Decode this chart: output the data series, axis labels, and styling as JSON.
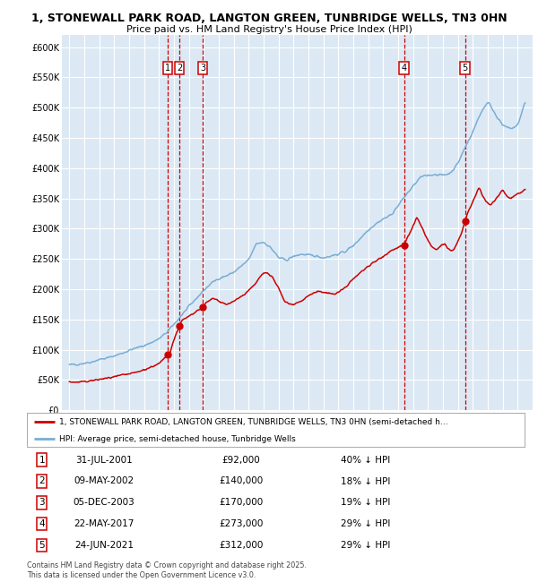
{
  "title_line1": "1, STONEWALL PARK ROAD, LANGTON GREEN, TUNBRIDGE WELLS, TN3 0HN",
  "title_line2": "Price paid vs. HM Land Registry's House Price Index (HPI)",
  "background_color": "#dce9f5",
  "plot_bg_color": "#dce9f5",
  "transactions": [
    {
      "label": "1",
      "date_num": 2001.58,
      "price": 92000
    },
    {
      "label": "2",
      "date_num": 2002.36,
      "price": 140000
    },
    {
      "label": "3",
      "date_num": 2003.92,
      "price": 170000
    },
    {
      "label": "4",
      "date_num": 2017.39,
      "price": 273000
    },
    {
      "label": "5",
      "date_num": 2021.48,
      "price": 312000
    }
  ],
  "legend_label_red": "1, STONEWALL PARK ROAD, LANGTON GREEN, TUNBRIDGE WELLS, TN3 0HN (semi-detached h…",
  "legend_label_blue": "HPI: Average price, semi-detached house, Tunbridge Wells",
  "footer": "Contains HM Land Registry data © Crown copyright and database right 2025.\nThis data is licensed under the Open Government Licence v3.0.",
  "table": [
    {
      "num": "1",
      "date": "31-JUL-2001",
      "price": "£92,000",
      "hpi": "40% ↓ HPI"
    },
    {
      "num": "2",
      "date": "09-MAY-2002",
      "price": "£140,000",
      "hpi": "18% ↓ HPI"
    },
    {
      "num": "3",
      "date": "05-DEC-2003",
      "price": "£170,000",
      "hpi": "19% ↓ HPI"
    },
    {
      "num": "4",
      "date": "22-MAY-2017",
      "price": "£273,000",
      "hpi": "29% ↓ HPI"
    },
    {
      "num": "5",
      "date": "24-JUN-2021",
      "price": "£312,000",
      "hpi": "29% ↓ HPI"
    }
  ],
  "ylim": [
    0,
    620000
  ],
  "yticks": [
    0,
    50000,
    100000,
    150000,
    200000,
    250000,
    300000,
    350000,
    400000,
    450000,
    500000,
    550000,
    600000
  ],
  "ytick_labels": [
    "£0",
    "£50K",
    "£100K",
    "£150K",
    "£200K",
    "£250K",
    "£300K",
    "£350K",
    "£400K",
    "£450K",
    "£500K",
    "£550K",
    "£600K"
  ],
  "xlim_start": 1994.5,
  "xlim_end": 2026.0,
  "red_color": "#cc0000",
  "blue_color": "#7aadd4",
  "hpi_points": [
    [
      1995.0,
      75000
    ],
    [
      1995.5,
      76000
    ],
    [
      1996.0,
      78000
    ],
    [
      1996.5,
      80000
    ],
    [
      1997.0,
      84000
    ],
    [
      1997.5,
      86000
    ],
    [
      1998.0,
      90000
    ],
    [
      1998.5,
      94000
    ],
    [
      1999.0,
      99000
    ],
    [
      1999.5,
      103000
    ],
    [
      2000.0,
      107000
    ],
    [
      2000.5,
      112000
    ],
    [
      2001.0,
      118000
    ],
    [
      2001.5,
      128000
    ],
    [
      2002.0,
      142000
    ],
    [
      2002.5,
      157000
    ],
    [
      2003.0,
      171000
    ],
    [
      2003.5,
      185000
    ],
    [
      2004.0,
      198000
    ],
    [
      2004.5,
      210000
    ],
    [
      2005.0,
      218000
    ],
    [
      2005.5,
      222000
    ],
    [
      2006.0,
      228000
    ],
    [
      2006.5,
      238000
    ],
    [
      2007.0,
      248000
    ],
    [
      2007.5,
      275000
    ],
    [
      2008.0,
      278000
    ],
    [
      2008.5,
      268000
    ],
    [
      2009.0,
      252000
    ],
    [
      2009.5,
      248000
    ],
    [
      2010.0,
      254000
    ],
    [
      2010.5,
      258000
    ],
    [
      2011.0,
      256000
    ],
    [
      2011.5,
      255000
    ],
    [
      2012.0,
      252000
    ],
    [
      2012.5,
      255000
    ],
    [
      2013.0,
      258000
    ],
    [
      2013.5,
      263000
    ],
    [
      2014.0,
      272000
    ],
    [
      2014.5,
      285000
    ],
    [
      2015.0,
      298000
    ],
    [
      2015.5,
      308000
    ],
    [
      2016.0,
      316000
    ],
    [
      2016.5,
      322000
    ],
    [
      2017.0,
      338000
    ],
    [
      2017.5,
      355000
    ],
    [
      2018.0,
      370000
    ],
    [
      2018.5,
      385000
    ],
    [
      2019.0,
      388000
    ],
    [
      2019.5,
      390000
    ],
    [
      2020.0,
      388000
    ],
    [
      2020.5,
      392000
    ],
    [
      2021.0,
      408000
    ],
    [
      2021.5,
      435000
    ],
    [
      2022.0,
      460000
    ],
    [
      2022.5,
      490000
    ],
    [
      2023.0,
      510000
    ],
    [
      2023.5,
      490000
    ],
    [
      2024.0,
      470000
    ],
    [
      2024.5,
      465000
    ],
    [
      2025.0,
      470000
    ],
    [
      2025.5,
      510000
    ]
  ],
  "red_points": [
    [
      1995.0,
      47000
    ],
    [
      1995.5,
      46000
    ],
    [
      1996.0,
      47500
    ],
    [
      1996.5,
      49000
    ],
    [
      1997.0,
      51000
    ],
    [
      1997.5,
      53000
    ],
    [
      1998.0,
      55000
    ],
    [
      1998.5,
      58000
    ],
    [
      1999.0,
      60000
    ],
    [
      1999.5,
      63000
    ],
    [
      2000.0,
      67000
    ],
    [
      2000.5,
      72000
    ],
    [
      2001.0,
      77000
    ],
    [
      2001.58,
      92000
    ],
    [
      2001.7,
      95000
    ],
    [
      2002.0,
      118000
    ],
    [
      2002.36,
      140000
    ],
    [
      2002.5,
      148000
    ],
    [
      2003.0,
      155000
    ],
    [
      2003.92,
      170000
    ],
    [
      2004.0,
      175000
    ],
    [
      2004.3,
      180000
    ],
    [
      2004.6,
      185000
    ],
    [
      2004.9,
      182000
    ],
    [
      2005.2,
      178000
    ],
    [
      2005.5,
      175000
    ],
    [
      2005.8,
      177000
    ],
    [
      2006.1,
      182000
    ],
    [
      2006.4,
      187000
    ],
    [
      2006.7,
      191000
    ],
    [
      2007.0,
      198000
    ],
    [
      2007.3,
      205000
    ],
    [
      2007.6,
      215000
    ],
    [
      2007.9,
      225000
    ],
    [
      2008.2,
      228000
    ],
    [
      2008.5,
      222000
    ],
    [
      2008.8,
      210000
    ],
    [
      2009.1,
      195000
    ],
    [
      2009.4,
      180000
    ],
    [
      2009.7,
      176000
    ],
    [
      2010.0,
      175000
    ],
    [
      2010.3,
      178000
    ],
    [
      2010.6,
      182000
    ],
    [
      2010.9,
      188000
    ],
    [
      2011.2,
      192000
    ],
    [
      2011.5,
      195000
    ],
    [
      2011.8,
      196000
    ],
    [
      2012.1,
      195000
    ],
    [
      2012.4,
      193000
    ],
    [
      2012.7,
      192000
    ],
    [
      2013.0,
      195000
    ],
    [
      2013.3,
      200000
    ],
    [
      2013.6,
      207000
    ],
    [
      2013.9,
      215000
    ],
    [
      2014.2,
      222000
    ],
    [
      2014.5,
      228000
    ],
    [
      2014.8,
      235000
    ],
    [
      2015.1,
      240000
    ],
    [
      2015.4,
      245000
    ],
    [
      2015.7,
      250000
    ],
    [
      2016.0,
      255000
    ],
    [
      2016.3,
      260000
    ],
    [
      2016.6,
      265000
    ],
    [
      2016.9,
      268000
    ],
    [
      2017.39,
      273000
    ],
    [
      2017.5,
      280000
    ],
    [
      2017.8,
      295000
    ],
    [
      2018.1,
      310000
    ],
    [
      2018.2,
      320000
    ],
    [
      2018.3,
      315000
    ],
    [
      2018.5,
      305000
    ],
    [
      2018.7,
      295000
    ],
    [
      2018.9,
      285000
    ],
    [
      2019.1,
      275000
    ],
    [
      2019.3,
      268000
    ],
    [
      2019.5,
      265000
    ],
    [
      2019.7,
      268000
    ],
    [
      2019.9,
      272000
    ],
    [
      2020.1,
      275000
    ],
    [
      2020.3,
      268000
    ],
    [
      2020.5,
      263000
    ],
    [
      2020.7,
      265000
    ],
    [
      2020.9,
      275000
    ],
    [
      2021.1,
      285000
    ],
    [
      2021.48,
      312000
    ],
    [
      2021.7,
      330000
    ],
    [
      2022.0,
      345000
    ],
    [
      2022.2,
      358000
    ],
    [
      2022.4,
      368000
    ],
    [
      2022.5,
      362000
    ],
    [
      2022.7,
      350000
    ],
    [
      2022.9,
      345000
    ],
    [
      2023.1,
      340000
    ],
    [
      2023.3,
      342000
    ],
    [
      2023.5,
      348000
    ],
    [
      2023.7,
      355000
    ],
    [
      2024.0,
      365000
    ],
    [
      2024.2,
      355000
    ],
    [
      2024.5,
      350000
    ],
    [
      2024.8,
      355000
    ],
    [
      2025.0,
      358000
    ],
    [
      2025.3,
      362000
    ],
    [
      2025.5,
      365000
    ]
  ]
}
